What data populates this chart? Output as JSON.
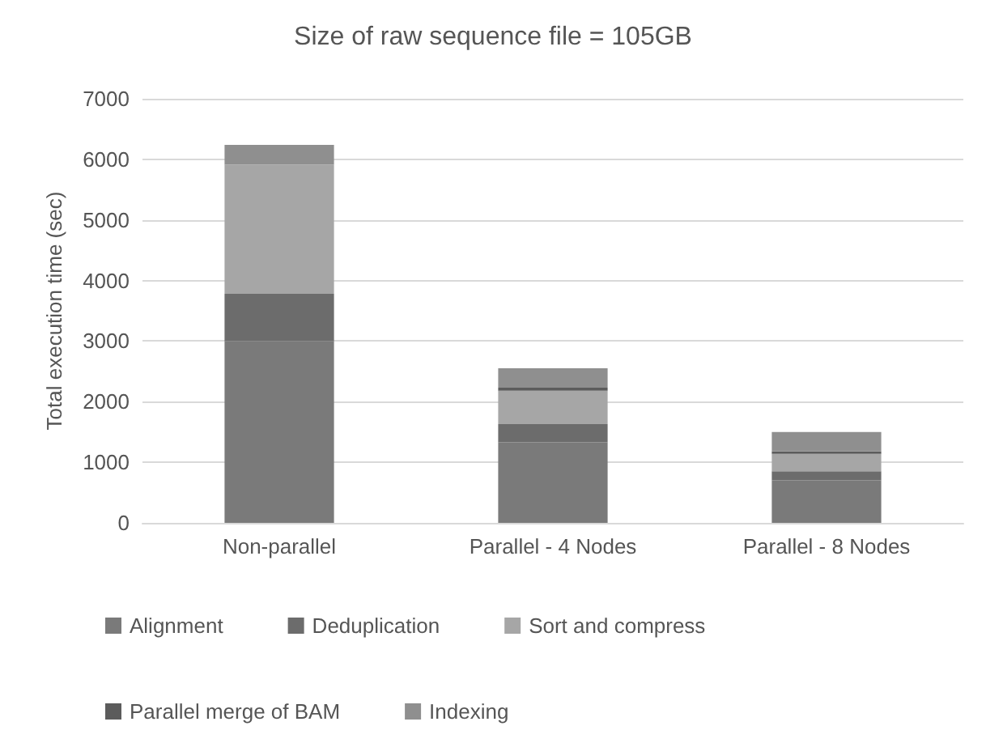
{
  "chart_data": {
    "type": "bar",
    "stacked": true,
    "title": "Size of raw sequence file = 105GB",
    "ylabel": "Total execution time (sec)",
    "categories": [
      "Non-parallel",
      "Parallel - 4 Nodes",
      "Parallel - 8 Nodes"
    ],
    "series": [
      {
        "name": "Alignment",
        "color": "#7a7a7a",
        "values": [
          3000,
          1330,
          700
        ]
      },
      {
        "name": "Deduplication",
        "color": "#6c6c6c",
        "values": [
          780,
          300,
          150
        ]
      },
      {
        "name": "Sort and compress",
        "color": "#a6a6a6",
        "values": [
          2130,
          550,
          290
        ]
      },
      {
        "name": "Parallel merge of BAM",
        "color": "#5c5c5c",
        "values": [
          0,
          50,
          40
        ]
      },
      {
        "name": "Indexing",
        "color": "#8f8f8f",
        "values": [
          330,
          320,
          320
        ]
      }
    ],
    "ylim": [
      0,
      7000
    ],
    "yticks": [
      0,
      1000,
      2000,
      3000,
      4000,
      5000,
      6000,
      7000
    ],
    "grid": "y",
    "legend": "bottom"
  }
}
